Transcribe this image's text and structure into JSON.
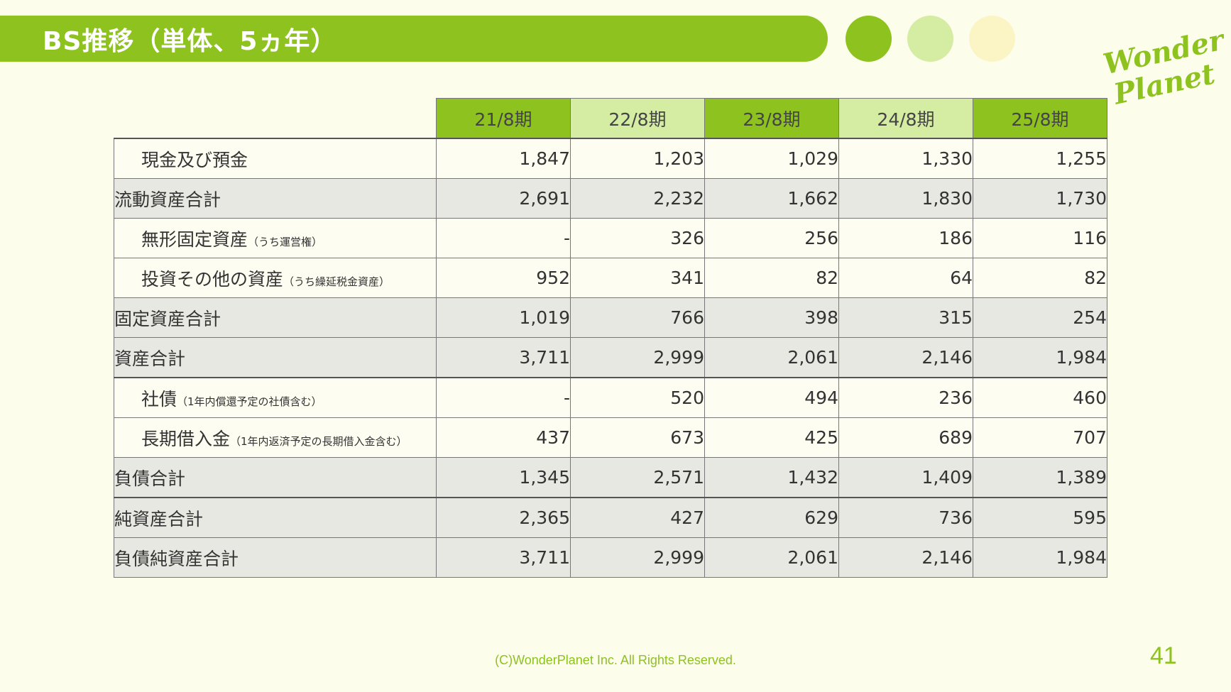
{
  "title": "BS推移（単体、5ヵ年）",
  "logo": {
    "line1": "Wonder",
    "line2": "Planet"
  },
  "table": {
    "headers": [
      "21/8期",
      "22/8期",
      "23/8期",
      "24/8期",
      "25/8期"
    ],
    "rows": [
      {
        "label": "現金及び預金",
        "note": "",
        "values": [
          "1,847",
          "1,203",
          "1,029",
          "1,330",
          "1,255"
        ]
      },
      {
        "label": "流動資産合計",
        "note": "",
        "values": [
          "2,691",
          "2,232",
          "1,662",
          "1,830",
          "1,730"
        ]
      },
      {
        "label": "無形固定資産",
        "note": "（うち運営権）",
        "values": [
          "-",
          "326",
          "256",
          "186",
          "116"
        ]
      },
      {
        "label": "投資その他の資産",
        "note": "（うち繰延税金資産）",
        "values": [
          "952",
          "341",
          "82",
          "64",
          "82"
        ]
      },
      {
        "label": "固定資産合計",
        "note": "",
        "values": [
          "1,019",
          "766",
          "398",
          "315",
          "254"
        ]
      },
      {
        "label": "資産合計",
        "note": "",
        "values": [
          "3,711",
          "2,999",
          "2,061",
          "2,146",
          "1,984"
        ]
      },
      {
        "label": "社債",
        "note": "（1年内償還予定の社債含む）",
        "values": [
          "-",
          "520",
          "494",
          "236",
          "460"
        ]
      },
      {
        "label": "長期借入金",
        "note": "（1年内返済予定の長期借入金含む）",
        "values": [
          "437",
          "673",
          "425",
          "689",
          "707"
        ]
      },
      {
        "label": "負債合計",
        "note": "",
        "values": [
          "1,345",
          "2,571",
          "1,432",
          "1,409",
          "1,389"
        ]
      },
      {
        "label": "純資産合計",
        "note": "",
        "values": [
          "2,365",
          "427",
          "629",
          "736",
          "595"
        ]
      },
      {
        "label": "負債純資産合計",
        "note": "",
        "values": [
          "3,711",
          "2,999",
          "2,061",
          "2,146",
          "1,984"
        ]
      }
    ]
  },
  "footer": "(C)WonderPlanet Inc.  All Rights Reserved.",
  "page_number": "41",
  "colors": {
    "accent": "#8dc21f",
    "accent_light": "#d5eca3",
    "accent_pale": "#fbf5c6",
    "background": "#fdfdeb"
  }
}
